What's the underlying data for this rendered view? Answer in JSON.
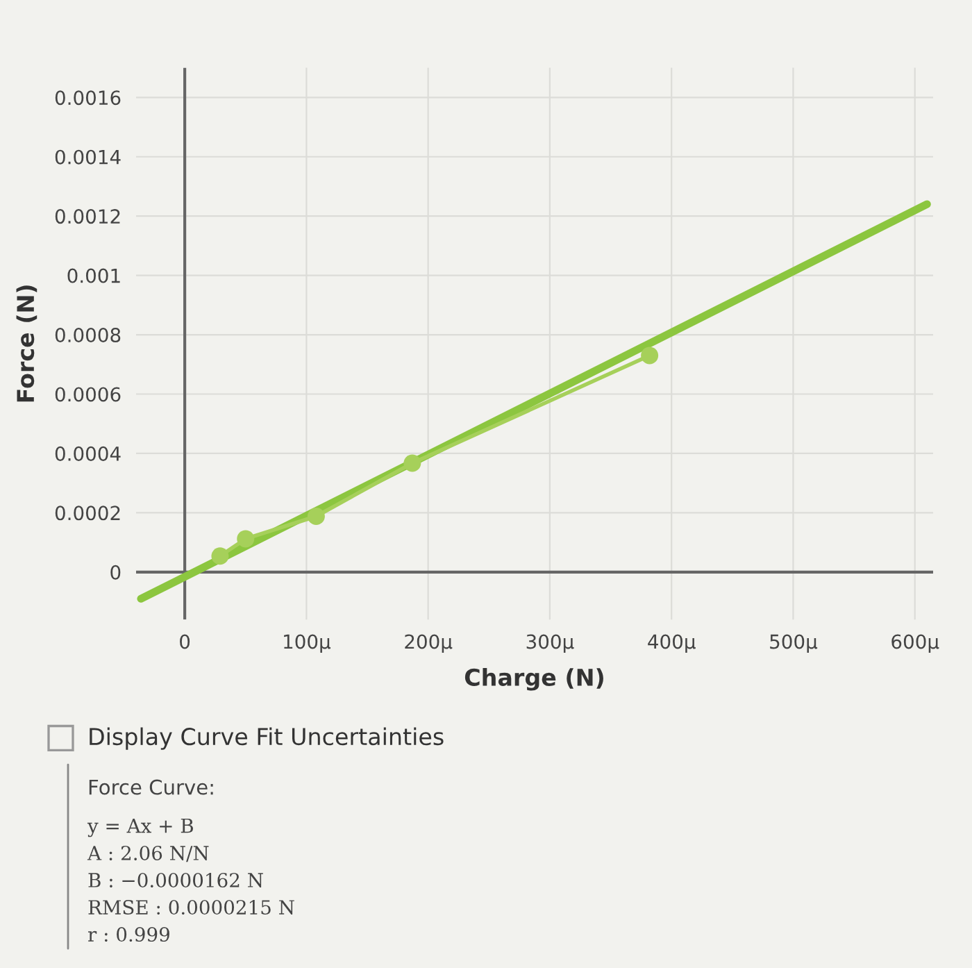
{
  "chart_data": {
    "type": "line",
    "xlabel": "Charge (N)",
    "ylabel": "Force (N)",
    "series": [
      {
        "color": "#a6d05a",
        "marker": "circle",
        "x": [
          29,
          50,
          108,
          187,
          382
        ],
        "values": [
          5.4e-05,
          0.000112,
          0.000188,
          0.000367,
          0.00073
        ]
      },
      {
        "type": "line",
        "color": "#8cc63f",
        "marker": "none",
        "x": [
          -36,
          610
        ],
        "values": [
          -9e-05,
          0.00124
        ]
      }
    ],
    "xlim": [
      -40,
      615
    ],
    "xticks": [
      0,
      {
        "value": 100,
        "label": "100μ"
      },
      {
        "value": 200,
        "label": "200μ"
      },
      {
        "value": 300,
        "label": "300μ"
      },
      {
        "value": 400,
        "label": "400μ"
      },
      {
        "value": 500,
        "label": "500μ"
      },
      {
        "value": 600,
        "label": "600μ"
      }
    ],
    "ylim": [
      -0.00016,
      0.0017
    ],
    "yticks": [
      0,
      0.0002,
      0.0004,
      0.0006,
      0.0008,
      0.001,
      0.0012,
      0.0014,
      0.0016
    ],
    "grid": true,
    "annotations": [
      "Display Curve Fit Uncertainties",
      "Force Curve:",
      "y = Ax + B",
      "A : 2.06 N/N",
      "B : −0.0000162 N",
      "RMSE : 0.0000215 N",
      "r : 0.999"
    ]
  }
}
